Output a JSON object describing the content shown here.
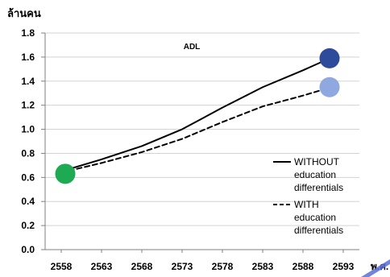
{
  "chart_data": {
    "type": "line",
    "title": "ADL",
    "ylabel": "ล้านคน",
    "xlabel": "พ.ศ.",
    "x": [
      2558,
      2563,
      2568,
      2573,
      2578,
      2583,
      2588,
      2593
    ],
    "xticks": [
      "2558",
      "2563",
      "2568",
      "2573",
      "2578",
      "2583",
      "2588",
      "2593"
    ],
    "yticks": [
      "0.0",
      "0.2",
      "0.4",
      "0.6",
      "0.8",
      "1.0",
      "1.2",
      "1.4",
      "1.6",
      "1.8"
    ],
    "xlim": [
      2556,
      2595
    ],
    "ylim": [
      0,
      1.8
    ],
    "grid": true,
    "legend_position": "right",
    "series": [
      {
        "name": "WITHOUT education differentials",
        "name_lines": [
          "WITHOUT",
          "education",
          "differentials"
        ],
        "style": "solid",
        "color": "#000000",
        "x": [
          2558,
          2563,
          2568,
          2573,
          2578,
          2583,
          2588,
          2591
        ],
        "values": [
          0.65,
          0.75,
          0.86,
          1.0,
          1.18,
          1.35,
          1.49,
          1.58
        ]
      },
      {
        "name": "WITH education differentials",
        "name_lines": [
          "WITH",
          "education",
          "differentials"
        ],
        "style": "dashed",
        "color": "#000000",
        "x": [
          2558,
          2563,
          2568,
          2573,
          2578,
          2583,
          2588,
          2591
        ],
        "values": [
          0.64,
          0.72,
          0.81,
          0.92,
          1.06,
          1.19,
          1.28,
          1.34
        ]
      }
    ],
    "markers": [
      {
        "x": 2558.5,
        "y": 0.63,
        "color": "#1daa53"
      },
      {
        "x": 2591.3,
        "y": 1.59,
        "color": "#2e4a9a"
      },
      {
        "x": 2591.3,
        "y": 1.35,
        "color": "#8fa9e0"
      }
    ]
  },
  "colors": {
    "grid": "#d3d3d3",
    "axis": "#808080",
    "accent": "#5b6fd8"
  }
}
